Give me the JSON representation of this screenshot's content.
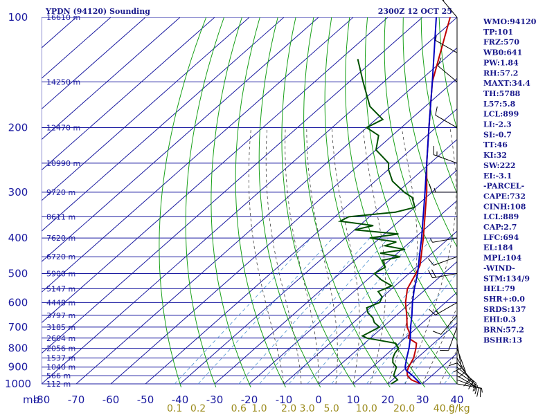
{
  "header": {
    "station": "YPDN (94120) Sounding",
    "time": "2300Z 12 OCT 25"
  },
  "colors": {
    "isobar": "#1a1aa0",
    "isotherm": "#1a1aa0",
    "dry_adiabat": "#18a018",
    "moist_adiabat": "#404040",
    "mixing_ratio": "#4a90d0",
    "temperature": "#c00000",
    "dewpoint": "#005000",
    "parcel": "#0000c0",
    "wind": "#000000",
    "text": "#1a1a8c"
  },
  "chart_data": {
    "type": "line",
    "title": "YPDN (94120) Sounding",
    "x_axis": {
      "label": "mb",
      "range": [
        -80,
        40
      ],
      "ticks": [
        -80,
        -70,
        -60,
        -50,
        -40,
        -30,
        -20,
        -10,
        0,
        10,
        20,
        30,
        40
      ],
      "tick_labels": [
        "-80",
        "-70",
        "-60",
        "-50",
        "-40",
        "-30",
        "-20",
        "-10",
        "0",
        "10",
        "20",
        "30",
        "40"
      ]
    },
    "y_axis": {
      "scale": "log",
      "range": [
        1000,
        100
      ],
      "pressure_labels": [
        100,
        200,
        300,
        400,
        500,
        600,
        700,
        800,
        900,
        1000
      ],
      "isobars": [
        100,
        150,
        200,
        250,
        300,
        350,
        400,
        450,
        500,
        550,
        600,
        650,
        700,
        750,
        800,
        850,
        900,
        950,
        1000
      ]
    },
    "heights": [
      {
        "p": 100,
        "label": "16610 m"
      },
      {
        "p": 150,
        "label": "14250 m"
      },
      {
        "p": 200,
        "label": "12470 m"
      },
      {
        "p": 250,
        "label": "10990 m"
      },
      {
        "p": 300,
        "label": "9720 m"
      },
      {
        "p": 350,
        "label": "8611 m"
      },
      {
        "p": 400,
        "label": "7620 m"
      },
      {
        "p": 450,
        "label": "6720 m"
      },
      {
        "p": 500,
        "label": "5900 m"
      },
      {
        "p": 550,
        "label": "5147 m"
      },
      {
        "p": 600,
        "label": "4448 m"
      },
      {
        "p": 650,
        "label": "3797 m"
      },
      {
        "p": 700,
        "label": "3185 m"
      },
      {
        "p": 750,
        "label": "2604 m"
      },
      {
        "p": 800,
        "label": "2056 m"
      },
      {
        "p": 850,
        "label": "1537 m"
      },
      {
        "p": 900,
        "label": "1040 m"
      },
      {
        "p": 950,
        "label": "566 m"
      },
      {
        "p": 1000,
        "label": "112 m"
      }
    ],
    "mixing_ratio_labels": [
      "0.1",
      "0.2",
      "0.6",
      "1.0",
      "2.0",
      "3.0",
      "5.0",
      "10.0",
      "20.0",
      "40.0",
      "g/kg"
    ],
    "series": [
      {
        "key": "temperature",
        "points": [
          {
            "p": 1000,
            "t": 29.5
          },
          {
            "p": 975,
            "t": 25.5
          },
          {
            "p": 950,
            "t": 23
          },
          {
            "p": 925,
            "t": 21.5
          },
          {
            "p": 900,
            "t": 20.5
          },
          {
            "p": 850,
            "t": 19
          },
          {
            "p": 800,
            "t": 16.5
          },
          {
            "p": 775,
            "t": 15
          },
          {
            "p": 750,
            "t": 11
          },
          {
            "p": 725,
            "t": 9.5
          },
          {
            "p": 700,
            "t": 7
          },
          {
            "p": 650,
            "t": 3
          },
          {
            "p": 600,
            "t": -1.5
          },
          {
            "p": 550,
            "t": -5.5
          },
          {
            "p": 500,
            "t": -8
          },
          {
            "p": 475,
            "t": -9.5
          },
          {
            "p": 450,
            "t": -12
          },
          {
            "p": 400,
            "t": -17.5
          },
          {
            "p": 350,
            "t": -24
          },
          {
            "p": 300,
            "t": -31.5
          },
          {
            "p": 250,
            "t": -41
          },
          {
            "p": 200,
            "t": -52
          },
          {
            "p": 150,
            "t": -66
          },
          {
            "p": 100,
            "t": -82
          }
        ]
      },
      {
        "key": "dewpoint",
        "points": [
          {
            "p": 1000,
            "t": 21
          },
          {
            "p": 975,
            "t": 21.5
          },
          {
            "p": 950,
            "t": 19
          },
          {
            "p": 925,
            "t": 18
          },
          {
            "p": 900,
            "t": 17
          },
          {
            "p": 875,
            "t": 14.5
          },
          {
            "p": 850,
            "t": 13
          },
          {
            "p": 825,
            "t": 12
          },
          {
            "p": 800,
            "t": 11.5
          },
          {
            "p": 775,
            "t": 9
          },
          {
            "p": 760,
            "t": 3
          },
          {
            "p": 750,
            "t": -1
          },
          {
            "p": 740,
            "t": -3
          },
          {
            "p": 720,
            "t": -2
          },
          {
            "p": 700,
            "t": -1
          },
          {
            "p": 680,
            "t": -4
          },
          {
            "p": 660,
            "t": -6
          },
          {
            "p": 640,
            "t": -9
          },
          {
            "p": 620,
            "t": -11
          },
          {
            "p": 600,
            "t": -9
          },
          {
            "p": 580,
            "t": -10
          },
          {
            "p": 560,
            "t": -13
          },
          {
            "p": 540,
            "t": -11
          },
          {
            "p": 520,
            "t": -16
          },
          {
            "p": 500,
            "t": -20
          },
          {
            "p": 480,
            "t": -19
          },
          {
            "p": 460,
            "t": -22
          },
          {
            "p": 450,
            "t": -18
          },
          {
            "p": 440,
            "t": -25
          },
          {
            "p": 430,
            "t": -19
          },
          {
            "p": 420,
            "t": -26
          },
          {
            "p": 410,
            "t": -24
          },
          {
            "p": 400,
            "t": -33
          },
          {
            "p": 390,
            "t": -26
          },
          {
            "p": 380,
            "t": -40
          },
          {
            "p": 370,
            "t": -36
          },
          {
            "p": 360,
            "t": -47
          },
          {
            "p": 350,
            "t": -46
          },
          {
            "p": 340,
            "t": -34
          },
          {
            "p": 330,
            "t": -30
          },
          {
            "p": 310,
            "t": -34
          },
          {
            "p": 300,
            "t": -38
          },
          {
            "p": 280,
            "t": -45
          },
          {
            "p": 260,
            "t": -50
          },
          {
            "p": 250,
            "t": -52
          },
          {
            "p": 230,
            "t": -60
          },
          {
            "p": 210,
            "t": -64
          },
          {
            "p": 200,
            "t": -70
          },
          {
            "p": 190,
            "t": -68
          },
          {
            "p": 175,
            "t": -76
          },
          {
            "p": 150,
            "t": -86
          },
          {
            "p": 130,
            "t": -95
          }
        ]
      },
      {
        "key": "parcel",
        "points": [
          {
            "p": 1000,
            "t": 29.5
          },
          {
            "p": 950,
            "t": 24.5
          },
          {
            "p": 920,
            "t": 21
          },
          {
            "p": 900,
            "t": 19.5
          },
          {
            "p": 850,
            "t": 17
          },
          {
            "p": 800,
            "t": 14.5
          },
          {
            "p": 750,
            "t": 11.5
          },
          {
            "p": 700,
            "t": 8
          },
          {
            "p": 650,
            "t": 4.5
          },
          {
            "p": 600,
            "t": 0.5
          },
          {
            "p": 550,
            "t": -3.5
          },
          {
            "p": 500,
            "t": -7.5
          },
          {
            "p": 450,
            "t": -12.5
          },
          {
            "p": 400,
            "t": -18
          },
          {
            "p": 350,
            "t": -24.5
          },
          {
            "p": 300,
            "t": -32
          },
          {
            "p": 250,
            "t": -41
          },
          {
            "p": 200,
            "t": -52
          },
          {
            "p": 150,
            "t": -66
          },
          {
            "p": 100,
            "t": -86
          }
        ]
      }
    ],
    "wind_barbs": [
      {
        "p": 1000,
        "dir": 100,
        "spd": 5
      },
      {
        "p": 975,
        "dir": 110,
        "spd": 10
      },
      {
        "p": 950,
        "dir": 120,
        "spd": 15
      },
      {
        "p": 925,
        "dir": 125,
        "spd": 15
      },
      {
        "p": 900,
        "dir": 130,
        "spd": 15
      },
      {
        "p": 875,
        "dir": 140,
        "spd": 15
      },
      {
        "p": 850,
        "dir": 150,
        "spd": 10
      },
      {
        "p": 800,
        "dir": 160,
        "spd": 10
      },
      {
        "p": 775,
        "dir": 170,
        "spd": 10
      },
      {
        "p": 750,
        "dir": 180,
        "spd": 10
      },
      {
        "p": 700,
        "dir": 200,
        "spd": 10
      },
      {
        "p": 650,
        "dir": 220,
        "spd": 10
      },
      {
        "p": 600,
        "dir": 240,
        "spd": 15
      },
      {
        "p": 500,
        "dir": 260,
        "spd": 20
      },
      {
        "p": 450,
        "dir": 250,
        "spd": 10
      },
      {
        "p": 400,
        "dir": 260,
        "spd": 5
      },
      {
        "p": 300,
        "dir": 270,
        "spd": 15
      },
      {
        "p": 250,
        "dir": 290,
        "spd": 15
      },
      {
        "p": 200,
        "dir": 300,
        "spd": 10
      },
      {
        "p": 150,
        "dir": 310,
        "spd": 10
      },
      {
        "p": 125,
        "dir": 300,
        "spd": 5
      },
      {
        "p": 100,
        "dir": 320,
        "spd": 15
      }
    ]
  },
  "indices": [
    "WMO:94120",
    "TP:101",
    "FRZ:570",
    "WB0:641",
    "PW:1.84",
    "RH:57.2",
    "MAXT:34.4",
    "TH:5788",
    "L57:5.8",
    "LCL:899",
    "LI:-2.3",
    "SI:-0.7",
    "TT:46",
    "KI:32",
    "SW:222",
    "EI:-3.1",
    "-PARCEL-",
    "CAPE:732",
    "CINH:108",
    "LCL:889",
    "CAP:2.7",
    "LFC:694",
    "EL:184",
    "MPL:104",
    "-WIND-",
    "STM:134/9",
    "HEL:79",
    "SHR+:0.0",
    "SRDS:137",
    "EHI:0.3",
    "BRN:57.2",
    "BSHR:13"
  ]
}
